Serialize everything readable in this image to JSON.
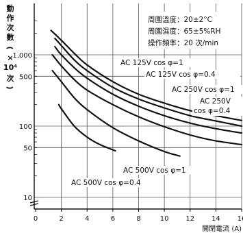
{
  "chart_data": {
    "type": "line",
    "xlabel": "開閉電流 (A)",
    "ylabel": [
      "動",
      "作",
      "次",
      "數"
    ],
    "yunit": [
      "(",
      "×",
      "10⁴",
      "次",
      ")"
    ],
    "xscale": "linear",
    "yscale": "log",
    "xlim": [
      0,
      16
    ],
    "ylim": [
      8,
      3000
    ],
    "xticks": [
      0,
      2,
      4,
      6,
      8,
      10,
      12,
      14,
      16
    ],
    "xtick_labels": [
      "0",
      "2",
      "4",
      "6",
      "8",
      "10",
      "12",
      "14",
      "16"
    ],
    "yticks": [
      10,
      50,
      100,
      500,
      1000
    ],
    "ytick_labels": [
      "10",
      "50",
      "100",
      "500",
      "1,000"
    ],
    "grid": true,
    "conditions": [
      "周圍溫度：20±2°C",
      "周圍濕度：65±5%RH",
      "操作頻率：20 次/min"
    ],
    "series": [
      {
        "name": "AC 125V cos φ=1",
        "label_lines": [
          "AC 125V cos φ=1"
        ],
        "x": [
          1.2,
          2,
          3,
          4,
          6,
          8,
          10,
          12,
          14,
          16
        ],
        "y": [
          2200,
          1600,
          1050,
          720,
          420,
          280,
          210,
          165,
          140,
          120
        ]
      },
      {
        "name": "AC 125V cos φ=0.4",
        "label_lines": [
          "AC 125V cos φ=0.4"
        ],
        "x": [
          1.5,
          2,
          3,
          4,
          6,
          8,
          10,
          12,
          14,
          16
        ],
        "y": [
          1700,
          1350,
          850,
          600,
          350,
          240,
          180,
          140,
          118,
          100
        ]
      },
      {
        "name": "AC 250V cos φ=1",
        "label_lines": [
          "AC 250V cos φ=1"
        ],
        "x": [
          1.5,
          2,
          3,
          4,
          6,
          8,
          10,
          12,
          14,
          16
        ],
        "y": [
          1300,
          1000,
          660,
          470,
          280,
          190,
          140,
          110,
          92,
          80
        ]
      },
      {
        "name": "AC 250V cos φ=0.4",
        "label_lines": [
          "AC 250V",
          "cos φ=0.4"
        ],
        "x": [
          1.3,
          2,
          3,
          4,
          6,
          8,
          10,
          12,
          14,
          16
        ],
        "y": [
          1000,
          700,
          450,
          320,
          200,
          135,
          98,
          75,
          62,
          55
        ]
      },
      {
        "name": "AC 500V cos φ=1",
        "label_lines": [
          "AC 500V cos φ=1"
        ],
        "x": [
          1.3,
          2,
          3,
          4,
          6,
          8,
          10,
          11.2
        ],
        "y": [
          600,
          420,
          250,
          170,
          95,
          62,
          44,
          38
        ]
      },
      {
        "name": "AC 500V cos φ=0.4",
        "label_lines": [
          "AC 500V cos φ=0.4"
        ],
        "x": [
          1.8,
          2,
          3,
          4,
          5,
          6.2
        ],
        "y": [
          200,
          175,
          100,
          70,
          55,
          45
        ]
      }
    ]
  }
}
